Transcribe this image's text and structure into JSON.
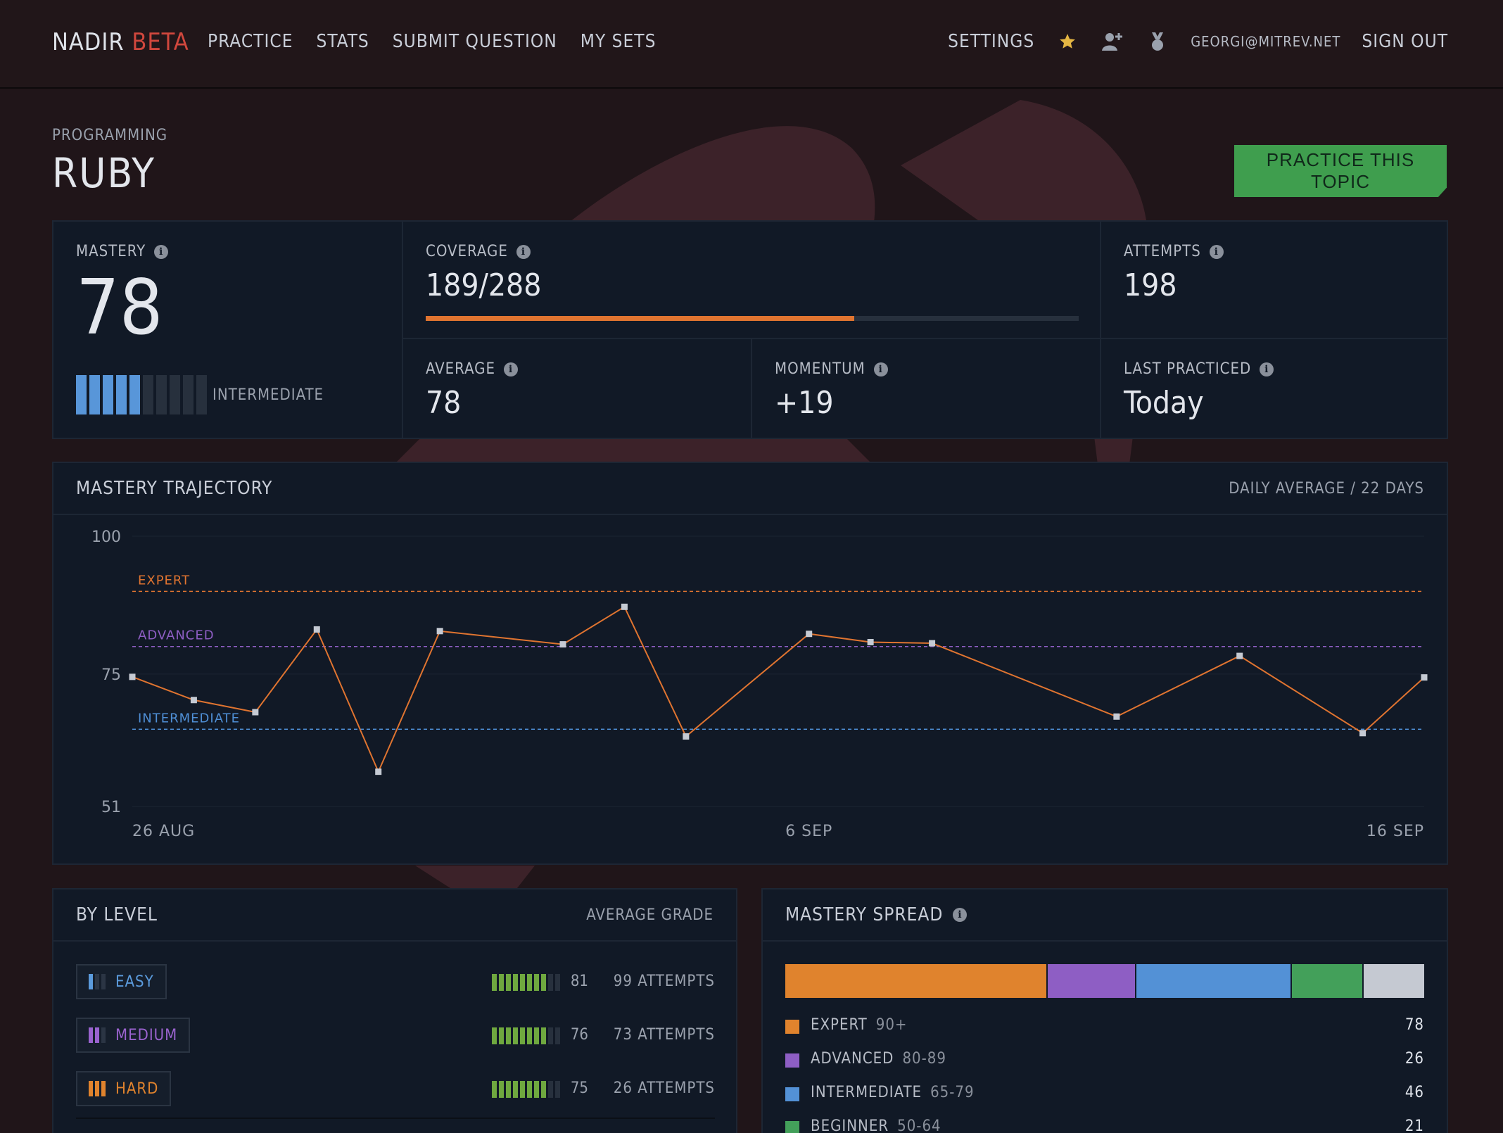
{
  "nav": {
    "brand": "NADIR",
    "brand_tag": "BETA",
    "links": [
      "PRACTICE",
      "STATS",
      "SUBMIT QUESTION",
      "MY SETS"
    ],
    "settings": "SETTINGS",
    "email": "GEORGI@MITREV.NET",
    "sign_out": "SIGN OUT",
    "icons": [
      "star-icon",
      "add-user-icon",
      "medal-icon"
    ]
  },
  "topic": {
    "category": "PROGRAMMING",
    "title": "RUBY",
    "practice_button": "PRACTICE THIS TOPIC"
  },
  "stats": {
    "mastery": {
      "label": "MASTERY",
      "value": "78",
      "level": "INTERMEDIATE",
      "filled_segments": 5,
      "total_segments": 10
    },
    "coverage": {
      "label": "COVERAGE",
      "value": "189/288",
      "fraction": 0.656
    },
    "attempts": {
      "label": "ATTEMPTS",
      "value": "198"
    },
    "average": {
      "label": "AVERAGE",
      "value": "78"
    },
    "momentum": {
      "label": "MOMENTUM",
      "value": "+19"
    },
    "last_practiced": {
      "label": "LAST PRACTICED",
      "value": "Today"
    }
  },
  "trajectory": {
    "title": "MASTERY TRAJECTORY",
    "subtitle": "DAILY AVERAGE / 22 DAYS"
  },
  "chart_data": {
    "type": "line",
    "x": [
      "26 Aug",
      "27 Aug",
      "28 Aug",
      "29 Aug",
      "30 Aug",
      "31 Aug",
      "2 Sep",
      "3 Sep",
      "4 Sep",
      "6 Sep",
      "7 Sep",
      "8 Sep",
      "11 Sep",
      "13 Sep",
      "15 Sep",
      "16 Sep"
    ],
    "x_day_index": [
      0,
      1,
      2,
      3,
      4,
      5,
      7,
      8,
      9,
      11,
      12,
      13,
      16,
      18,
      20,
      21
    ],
    "values": [
      74.5,
      70.3,
      68.1,
      83.1,
      57.3,
      82.8,
      80.4,
      87.2,
      63.7,
      82.3,
      80.8,
      80.6,
      67.3,
      78.3,
      64.3,
      74.4
    ],
    "ylim": [
      51,
      100
    ],
    "y_ticks": [
      100,
      75,
      51
    ],
    "x_tick_labels": [
      "26 AUG",
      "6 SEP",
      "16 SEP"
    ],
    "x_tick_index": [
      0,
      11,
      21
    ],
    "thresholds": [
      {
        "label": "EXPERT",
        "value": 90,
        "color": "#e07430"
      },
      {
        "label": "ADVANCED",
        "value": 80,
        "color": "#8e5ec4"
      },
      {
        "label": "INTERMEDIATE",
        "value": 65,
        "color": "#4f8fd6"
      }
    ],
    "line_color": "#e07430"
  },
  "by_level": {
    "title": "BY LEVEL",
    "subtitle": "AVERAGE GRADE",
    "rows": [
      {
        "name": "EASY",
        "color": "#5b9bdc",
        "icon_filled": 1,
        "grade": "81",
        "grade_fill": 8,
        "attempts": "99 ATTEMPTS"
      },
      {
        "name": "MEDIUM",
        "color": "#9a63cf",
        "icon_filled": 2,
        "grade": "76",
        "grade_fill": 8,
        "attempts": "73 ATTEMPTS"
      },
      {
        "name": "HARD",
        "color": "#e0832d",
        "icon_filled": 3,
        "grade": "75",
        "grade_fill": 8,
        "attempts": "26 ATTEMPTS"
      }
    ]
  },
  "spread": {
    "title": "MASTERY SPREAD",
    "segments": [
      {
        "name": "EXPERT",
        "range": "90+",
        "count": "78",
        "value": 78,
        "color": "#e0832d"
      },
      {
        "name": "ADVANCED",
        "range": "80-89",
        "count": "26",
        "value": 26,
        "color": "#8e5ec4"
      },
      {
        "name": "INTERMEDIATE",
        "range": "65-79",
        "count": "46",
        "value": 46,
        "color": "#5391d6"
      },
      {
        "name": "BEGINNER",
        "range": "50-64",
        "count": "21",
        "value": 21,
        "color": "#43a05a"
      },
      {
        "name": "",
        "range": "",
        "count": "",
        "value": 18,
        "color": "#c5c9d2"
      }
    ]
  }
}
